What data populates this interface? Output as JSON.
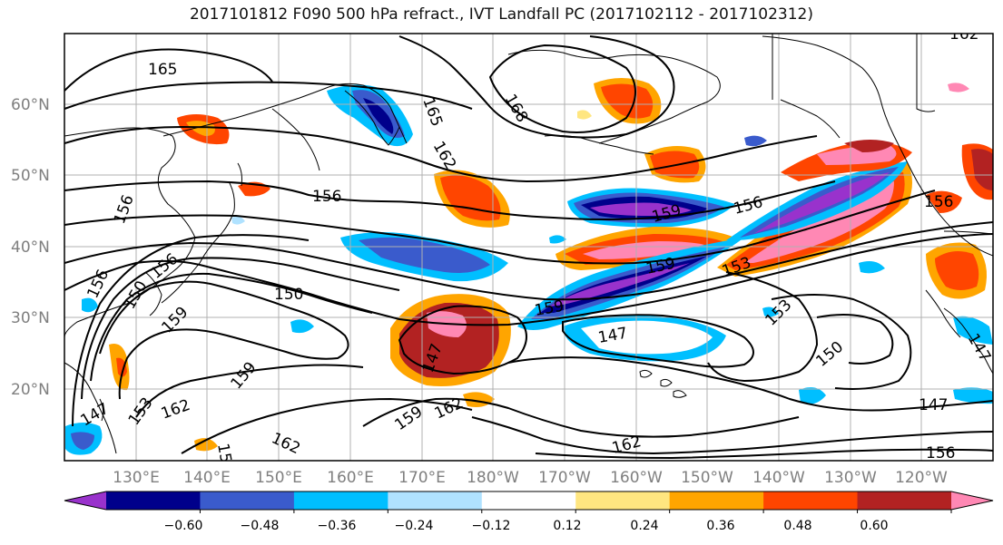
{
  "title": "2017101812 F090 500 hPa refract., IVT Landfall PC (2017102112 - 2017102312)",
  "lat_labels": [
    "60°N",
    "50°N",
    "40°N",
    "30°N",
    "20°N"
  ],
  "lon_labels": [
    "130°E",
    "140°E",
    "150°E",
    "160°E",
    "170°E",
    "180°W",
    "170°W",
    "160°W",
    "150°W",
    "140°W",
    "130°W",
    "120°W"
  ],
  "contour_labels": [
    "165",
    "165",
    "168",
    "162",
    "162",
    "156",
    "156",
    "159",
    "156",
    "159",
    "153",
    "156",
    "156",
    "156",
    "150",
    "159",
    "150",
    "153",
    "147",
    "147",
    "150",
    "147",
    "159",
    "162",
    "147",
    "153",
    "162",
    "159",
    "162",
    "159",
    "162",
    "156",
    "159",
    "147"
  ],
  "colorbar": {
    "colors": [
      "#9932CC",
      "#00008B",
      "#3A5BCC",
      "#00BFFF",
      "#B0E2FF",
      "#FFFFFF",
      "#FFE680",
      "#FFA500",
      "#FF4500",
      "#B22222",
      "#FF88B4"
    ],
    "tick_labels": [
      "−0.60",
      "−0.48",
      "−0.36",
      "−0.24",
      "−0.12",
      "0.12",
      "0.24",
      "0.36",
      "0.48",
      "0.60"
    ]
  },
  "colors": {
    "land_line": "#000000",
    "grid": "#b0b0b0"
  }
}
